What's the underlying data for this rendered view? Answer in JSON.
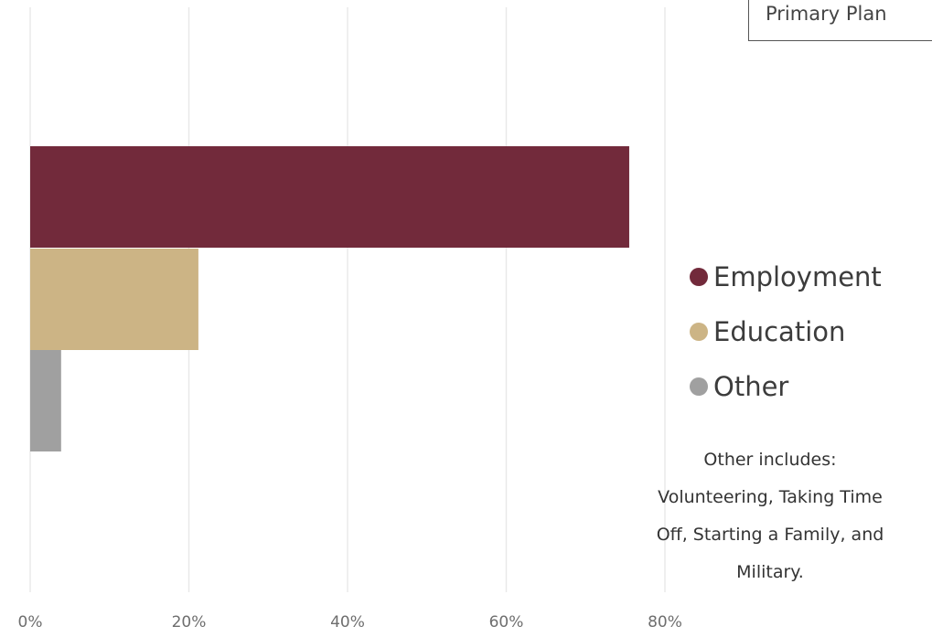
{
  "header": {
    "plan_label": "Primary Plan"
  },
  "chart_data": {
    "type": "bar",
    "orientation": "horizontal",
    "categories": [
      "Employment",
      "Education",
      "Other"
    ],
    "values": [
      75.5,
      21.2,
      3.9
    ],
    "colors": [
      "#722a3b",
      "#ccb485",
      "#a0a0a0"
    ],
    "x_ticks": [
      "0%",
      "20%",
      "40%",
      "60%",
      "80%"
    ],
    "xlim": [
      0,
      80
    ],
    "grid": "vertical",
    "legend_position": "right",
    "legend": [
      {
        "label": "Employment",
        "color": "#722a3b"
      },
      {
        "label": "Education",
        "color": "#ccb485"
      },
      {
        "label": "Other",
        "color": "#a0a0a0"
      }
    ],
    "annotation": "Other includes: Volunteering, Taking Time Off, Starting a Family, and Military."
  }
}
